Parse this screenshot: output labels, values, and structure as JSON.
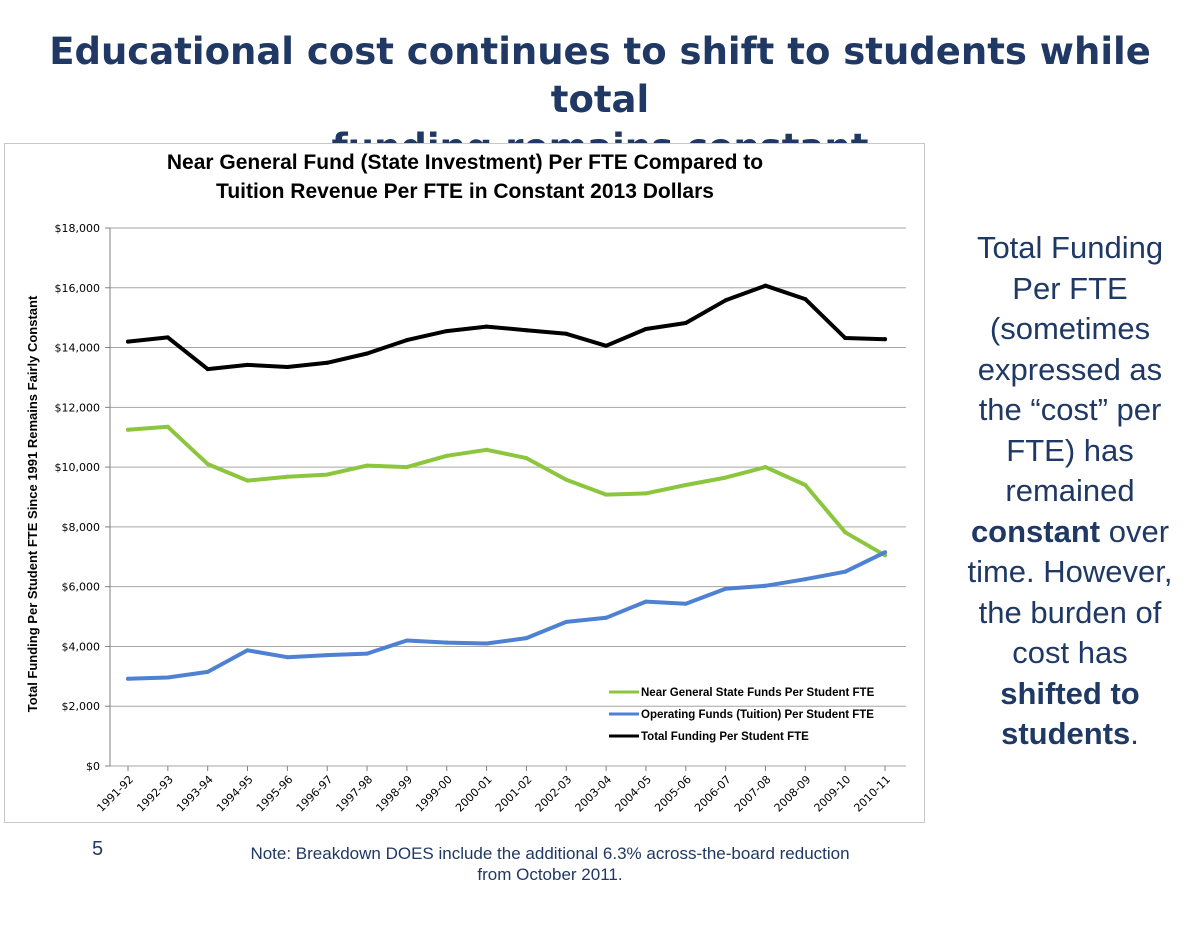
{
  "slide": {
    "title": "Educational cost continues to shift to students while total funding remains constant",
    "title_lines": [
      "Educational cost continues to shift to students while total",
      "funding remains constant"
    ],
    "slide_number": "5",
    "footnote_lines": [
      "Note: Breakdown DOES include the additional 6.3% across-the-board reduction",
      "from October 2011."
    ]
  },
  "side_text": {
    "lines": [
      [
        {
          "t": "Total Funding",
          "b": false
        }
      ],
      [
        {
          "t": "Per FTE",
          "b": false
        }
      ],
      [
        {
          "t": "(sometimes",
          "b": false
        }
      ],
      [
        {
          "t": "expressed as",
          "b": false
        }
      ],
      [
        {
          "t": "the “cost” per",
          "b": false
        }
      ],
      [
        {
          "t": "FTE) has",
          "b": false
        }
      ],
      [
        {
          "t": "remained",
          "b": false
        }
      ],
      [
        {
          "t": "constant",
          "b": true
        },
        {
          "t": " over",
          "b": false
        }
      ],
      [
        {
          "t": "time. However,",
          "b": false
        }
      ],
      [
        {
          "t": "the burden of",
          "b": false
        }
      ],
      [
        {
          "t": "cost has",
          "b": false
        }
      ],
      [
        {
          "t": "shifted to",
          "b": true
        }
      ],
      [
        {
          "t": "students",
          "b": true
        },
        {
          "t": ".",
          "b": false
        }
      ]
    ]
  },
  "colors": {
    "title": "#1f3864",
    "green_series": "#8cc63f",
    "blue_series": "#4f81d3",
    "black_series": "#000000",
    "gridline": "#a6a6a6"
  },
  "chart_data": {
    "type": "line",
    "title_lines": [
      "Near General Fund (State Investment) Per FTE Compared to",
      "Tuition Revenue Per FTE in Constant 2013 Dollars"
    ],
    "xlabel": "",
    "ylabel": "Total Funding Per Student FTE Since 1991 Remains Fairly Constant",
    "ylim": [
      0,
      18000
    ],
    "y_ticks": [
      0,
      2000,
      4000,
      6000,
      8000,
      10000,
      12000,
      14000,
      16000,
      18000
    ],
    "y_tick_labels": [
      "$0",
      "$2,000",
      "$4,000",
      "$6,000",
      "$8,000",
      "$10,000",
      "$12,000",
      "$14,000",
      "$16,000",
      "$18,000"
    ],
    "grid": true,
    "legend_position": "bottom-right",
    "categories": [
      "1991-92",
      "1992-93",
      "1993-94",
      "1994-95",
      "1995-96",
      "1996-97",
      "1997-98",
      "1998-99",
      "1999-00",
      "2000-01",
      "2001-02",
      "2002-03",
      "2003-04",
      "2004-05",
      "2005-06",
      "2006-07",
      "2007-08",
      "2008-09",
      "2009-10",
      "2010-11"
    ],
    "series": [
      {
        "name": "Near General State Funds Per Student FTE",
        "color": "#8cc63f",
        "values": [
          11250,
          11350,
          10100,
          9550,
          9680,
          9750,
          10050,
          10000,
          10380,
          10580,
          10300,
          9580,
          9080,
          9120,
          9400,
          9650,
          10000,
          9400,
          7820,
          7050
        ]
      },
      {
        "name": "Operating Funds (Tuition)  Per Student FTE",
        "color": "#4f81d3",
        "values": [
          2920,
          2960,
          3150,
          3870,
          3640,
          3710,
          3760,
          4200,
          4130,
          4100,
          4280,
          4820,
          4960,
          5500,
          5430,
          5930,
          6030,
          6250,
          6500,
          7150
        ]
      },
      {
        "name": "Total Funding  Per Student FTE",
        "color": "#000000",
        "values": [
          14200,
          14340,
          13280,
          13420,
          13350,
          13490,
          13800,
          14250,
          14550,
          14700,
          14580,
          14460,
          14060,
          14620,
          14820,
          15580,
          16070,
          15620,
          14320,
          14280
        ]
      }
    ]
  }
}
